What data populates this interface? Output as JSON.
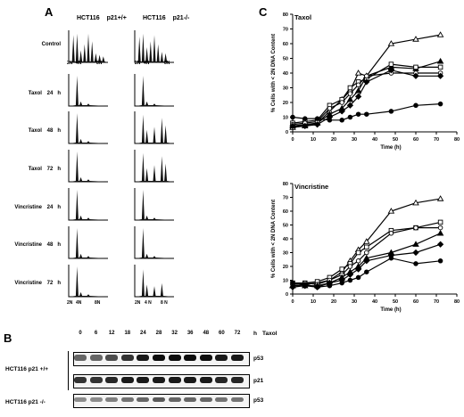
{
  "panels": {
    "A": "A",
    "B": "B",
    "C": "C"
  },
  "panel_a": {
    "col_headers": [
      "HCT116",
      "p21+/+",
      "HCT116",
      "p21-/-"
    ],
    "rows": [
      {
        "drug": "Control",
        "time": "",
        "unit": ""
      },
      {
        "drug": "Taxol",
        "time": "24",
        "unit": "h"
      },
      {
        "drug": "Taxol",
        "time": "48",
        "unit": "h"
      },
      {
        "drug": "Taxol",
        "time": "72",
        "unit": "h"
      },
      {
        "drug": "Vincristine",
        "time": "24",
        "unit": "h"
      },
      {
        "drug": "Vincristine",
        "time": "48",
        "unit": "h"
      },
      {
        "drug": "Vincristine",
        "time": "72",
        "unit": "h"
      }
    ],
    "control_ticks_left": [
      "2N",
      "4N",
      "8N"
    ],
    "control_ticks_right": [
      "2N",
      "4N",
      "8N"
    ],
    "bottom_ticks_left": [
      "2N",
      "4N",
      "8N"
    ],
    "bottom_ticks_right": [
      "2N",
      "4 N",
      "8 N"
    ]
  },
  "panel_b": {
    "lanes": [
      "0",
      "6",
      "12",
      "18",
      "24",
      "28",
      "32",
      "36",
      "48",
      "60",
      "72"
    ],
    "h_label": "h",
    "drug_label": "Taxol",
    "line1": "HCT116 p21 +/+",
    "line2": "HCT116 p21 -/-",
    "bands": [
      "p53",
      "p21",
      "p53"
    ]
  },
  "chart_data": [
    {
      "type": "line",
      "title": "Taxol",
      "xlabel": "Time (h)",
      "ylabel": "% Cells with < 2N DNA Content",
      "xlim": [
        0,
        80
      ],
      "ylim": [
        0,
        80
      ],
      "xticks": [
        0,
        10,
        20,
        30,
        40,
        50,
        60,
        70,
        80
      ],
      "yticks": [
        0,
        10,
        20,
        30,
        40,
        50,
        60,
        70,
        80
      ],
      "series": [
        {
          "marker": "open-triangle",
          "x": [
            0,
            6,
            12,
            18,
            24,
            28,
            32,
            36,
            48,
            60,
            72
          ],
          "y": [
            3,
            4,
            6,
            14,
            22,
            28,
            40,
            38,
            60,
            63,
            66
          ]
        },
        {
          "marker": "filled-triangle",
          "x": [
            0,
            6,
            12,
            18,
            24,
            28,
            32,
            36,
            48,
            60,
            72
          ],
          "y": [
            4,
            5,
            6,
            12,
            16,
            22,
            28,
            38,
            44,
            43,
            48
          ]
        },
        {
          "marker": "open-square",
          "x": [
            0,
            6,
            12,
            18,
            24,
            28,
            32,
            36,
            48,
            60,
            72
          ],
          "y": [
            6,
            7,
            8,
            18,
            22,
            30,
            34,
            36,
            46,
            44,
            44
          ]
        },
        {
          "marker": "open-circle",
          "x": [
            0,
            6,
            12,
            18,
            24,
            28,
            32,
            36,
            48,
            60,
            72
          ],
          "y": [
            5,
            6,
            7,
            16,
            20,
            26,
            32,
            38,
            40,
            40,
            40
          ]
        },
        {
          "marker": "filled-diamond",
          "x": [
            0,
            6,
            12,
            18,
            24,
            28,
            32,
            36,
            48,
            60,
            72
          ],
          "y": [
            4,
            4,
            5,
            10,
            14,
            18,
            24,
            34,
            42,
            38,
            38
          ]
        },
        {
          "marker": "filled-circle",
          "x": [
            0,
            6,
            12,
            18,
            24,
            28,
            32,
            36,
            48,
            60,
            72
          ],
          "y": [
            10,
            9,
            9,
            8,
            8,
            10,
            12,
            12,
            14,
            18,
            19
          ]
        }
      ]
    },
    {
      "type": "line",
      "title": "Vincristine",
      "xlabel": "Time (h)",
      "ylabel": "% Cells with < 2N DNA Content",
      "xlim": [
        0,
        80
      ],
      "ylim": [
        0,
        80
      ],
      "xticks": [
        0,
        10,
        20,
        30,
        40,
        50,
        60,
        70,
        80
      ],
      "yticks": [
        0,
        10,
        20,
        30,
        40,
        50,
        60,
        70,
        80
      ],
      "series": [
        {
          "marker": "open-triangle",
          "x": [
            0,
            6,
            12,
            18,
            24,
            28,
            32,
            36,
            48,
            60,
            72
          ],
          "y": [
            6,
            7,
            8,
            10,
            16,
            24,
            32,
            38,
            60,
            66,
            69
          ]
        },
        {
          "marker": "open-square",
          "x": [
            0,
            6,
            12,
            18,
            24,
            28,
            32,
            36,
            48,
            60,
            72
          ],
          "y": [
            8,
            8,
            9,
            12,
            18,
            22,
            30,
            34,
            46,
            48,
            52
          ]
        },
        {
          "marker": "open-circle",
          "x": [
            0,
            6,
            12,
            18,
            24,
            28,
            32,
            36,
            48,
            60,
            72
          ],
          "y": [
            7,
            8,
            7,
            10,
            14,
            20,
            24,
            30,
            44,
            48,
            48
          ]
        },
        {
          "marker": "filled-triangle",
          "x": [
            0,
            6,
            12,
            18,
            24,
            28,
            32,
            36,
            48,
            60,
            72
          ],
          "y": [
            6,
            6,
            6,
            8,
            12,
            16,
            20,
            26,
            30,
            36,
            44
          ]
        },
        {
          "marker": "filled-diamond",
          "x": [
            0,
            6,
            12,
            18,
            24,
            28,
            32,
            36,
            48,
            60,
            72
          ],
          "y": [
            5,
            6,
            5,
            8,
            10,
            14,
            18,
            24,
            28,
            30,
            36
          ]
        },
        {
          "marker": "filled-circle",
          "x": [
            0,
            6,
            12,
            18,
            24,
            28,
            32,
            36,
            48,
            60,
            72
          ],
          "y": [
            8,
            7,
            5,
            6,
            8,
            10,
            12,
            16,
            26,
            22,
            24
          ]
        }
      ]
    }
  ]
}
